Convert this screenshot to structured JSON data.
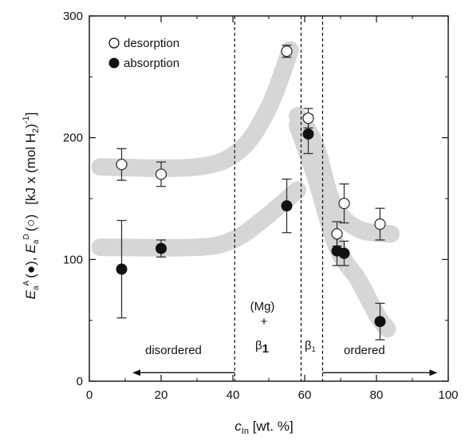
{
  "chart_data": {
    "type": "scatter",
    "xlabel": {
      "symbol": "c",
      "sub": "In",
      "rest": "  [wt. %]"
    },
    "ylabel": {
      "a_symbol": "E",
      "a_sub": "a",
      "a_sup": "A",
      "a_marker": "(●),",
      "d_symbol": "E",
      "d_sub": "a",
      "d_sup": "D",
      "d_marker": "(○)",
      "units_open": "[kJ x (mol H",
      "units_sub": "2",
      "units_close": ")",
      "units_sup": "-1",
      "units_end": "]"
    },
    "xlim": [
      0,
      100
    ],
    "ylim": [
      0,
      300
    ],
    "xticks": [
      0,
      20,
      40,
      60,
      80,
      100
    ],
    "yticks": [
      0,
      100,
      200,
      300
    ],
    "x_tick_labels": [
      "0",
      "20",
      "40",
      "60",
      "80",
      "100"
    ],
    "y_tick_labels": [
      "0",
      "100",
      "200",
      "300"
    ],
    "legend": {
      "placement": "top-left",
      "entries": [
        {
          "label": "desorption",
          "marker": "open-circle"
        },
        {
          "label": "absorption",
          "marker": "filled-circle"
        }
      ]
    },
    "series": [
      {
        "name": "desorption",
        "marker": "open-circle",
        "points": [
          {
            "x": 9,
            "y": 178,
            "err": 13
          },
          {
            "x": 20,
            "y": 170,
            "err": 10
          },
          {
            "x": 55,
            "y": 271,
            "err": 5
          },
          {
            "x": 61,
            "y": 216,
            "err": 8
          },
          {
            "x": 69,
            "y": 121,
            "err": 10
          },
          {
            "x": 71,
            "y": 146,
            "err": 16
          },
          {
            "x": 81,
            "y": 129,
            "err": 13
          }
        ]
      },
      {
        "name": "absorption",
        "marker": "filled-circle",
        "points": [
          {
            "x": 9,
            "y": 92,
            "err": 40
          },
          {
            "x": 20,
            "y": 109,
            "err": 7
          },
          {
            "x": 55,
            "y": 144,
            "err": 22
          },
          {
            "x": 61,
            "y": 203,
            "err": 16
          },
          {
            "x": 69,
            "y": 107,
            "err": 12
          },
          {
            "x": 71,
            "y": 105,
            "err": 10
          },
          {
            "x": 81,
            "y": 49,
            "err": 15
          }
        ]
      }
    ],
    "guide_bands": [
      {
        "points": [
          [
            3,
            176
          ],
          [
            30,
            176
          ],
          [
            42,
            190
          ],
          [
            50,
            225
          ],
          [
            56,
            272
          ]
        ]
      },
      {
        "points": [
          [
            3,
            110
          ],
          [
            30,
            110
          ],
          [
            40,
            116
          ],
          [
            48,
            132
          ],
          [
            58,
            157
          ]
        ]
      },
      {
        "points": [
          [
            58,
            218
          ],
          [
            63,
            194
          ],
          [
            68,
            145
          ],
          [
            75,
            125
          ],
          [
            84,
            121
          ]
        ]
      },
      {
        "points": [
          [
            58,
            210
          ],
          [
            63,
            168
          ],
          [
            69,
            110
          ],
          [
            75,
            83
          ],
          [
            80,
            55
          ],
          [
            83,
            43
          ]
        ]
      }
    ],
    "dashed_lines_x": [
      40.5,
      59,
      65
    ],
    "annotations": {
      "disordered": "disordered",
      "ordered": "ordered",
      "mg": "(Mg)",
      "plus": "+",
      "beta1": "β",
      "beta1_sub": "1",
      "beta1_small": "β",
      "beta1_small_sub": "1",
      "disordered_arrow_x": [
        40.5,
        12
      ],
      "ordered_arrow_x": [
        65,
        97
      ],
      "arrow_y": 7
    },
    "grid": false
  }
}
